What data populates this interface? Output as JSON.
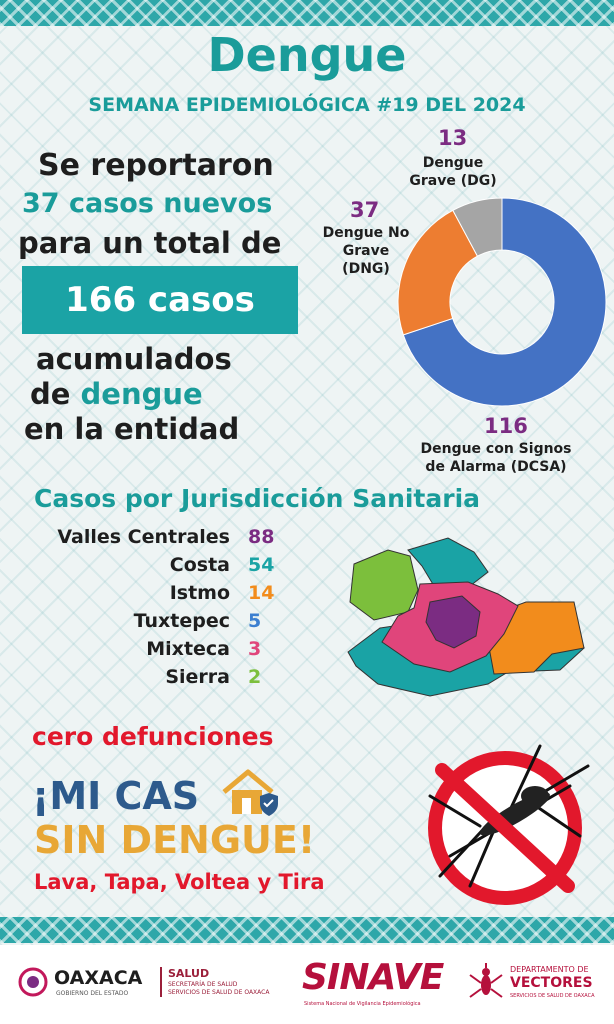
{
  "header": {
    "title": "Dengue",
    "subtitle": "SEMANA EPIDEMIOLÓGICA #19 DEL 2024"
  },
  "summary": {
    "line1": "Se reportaron",
    "line2": "37 casos nuevos",
    "line3": "para un total de",
    "total": "166 casos",
    "line4": "acumulados",
    "line5_a": "de ",
    "line5_b": "dengue",
    "line6": "en la entidad"
  },
  "chart_data": {
    "type": "pie",
    "donut": true,
    "slices": [
      {
        "value": 116,
        "number_label": "116",
        "label": "Dengue con Signos de Alarma (DCSA)",
        "color": "#4472c4"
      },
      {
        "value": 37,
        "number_label": "37",
        "label": "Dengue No Grave (DNG)",
        "color": "#ed7d31"
      },
      {
        "value": 13,
        "number_label": "13",
        "label": "Dengue Grave (DG)",
        "color": "#a5a5a5"
      }
    ]
  },
  "donut_labels": {
    "dg_number": "13",
    "dg_line1": "Dengue",
    "dg_line2": "Grave (DG)",
    "dng_number": "37",
    "dng_line1": "Dengue No",
    "dng_line2": "Grave",
    "dng_line3": "(DNG)",
    "dcsa_number": "116",
    "dcsa_line1": "Dengue con Signos",
    "dcsa_line2": "de Alarma (DCSA)"
  },
  "jurisdictions": {
    "heading": "Casos por Jurisdicción Sanitaria",
    "items": [
      {
        "name": "Valles Centrales",
        "value": "88",
        "color": "#7b2c82"
      },
      {
        "name": "Costa",
        "value": "54",
        "color": "#1aa3a5"
      },
      {
        "name": "Istmo",
        "value": "14",
        "color": "#f28c1c"
      },
      {
        "name": "Tuxtepec",
        "value": "5",
        "color": "#3c7fd0"
      },
      {
        "name": "Mixteca",
        "value": "3",
        "color": "#e0457b"
      },
      {
        "name": "Sierra",
        "value": "2",
        "color": "#7cbf3c"
      }
    ],
    "map_colors": {
      "valles": "#7b2c82",
      "costa": "#1aa3a5",
      "istmo": "#f28c1c",
      "tuxtepec": "#1aa3a5",
      "mixteca": "#7cbf3c",
      "sierra": "#e0457b"
    }
  },
  "deaths": "cero defunciones",
  "campaign": {
    "line1_a": "¡MI CAS",
    "line2": "SIN DENGUE!",
    "slogan": "Lava, Tapa, Voltea y Tira"
  },
  "footer": {
    "oaxaca": "OAXACA",
    "oaxaca_sub": "GOBIERNO DEL ESTADO",
    "salud": "SALUD",
    "salud_sub1": "SECRETARÍA DE SALUD",
    "salud_sub2": "SERVICIOS DE SALUD DE OAXACA",
    "sinave": "SINAVE",
    "sinave_sub": "Sistema Nacional de Vigilancia Epidemiológica",
    "vectores_1": "DEPARTAMENTO DE",
    "vectores_2": "VECTORES",
    "vectores_3": "SERVICIOS DE SALUD DE OAXACA"
  }
}
